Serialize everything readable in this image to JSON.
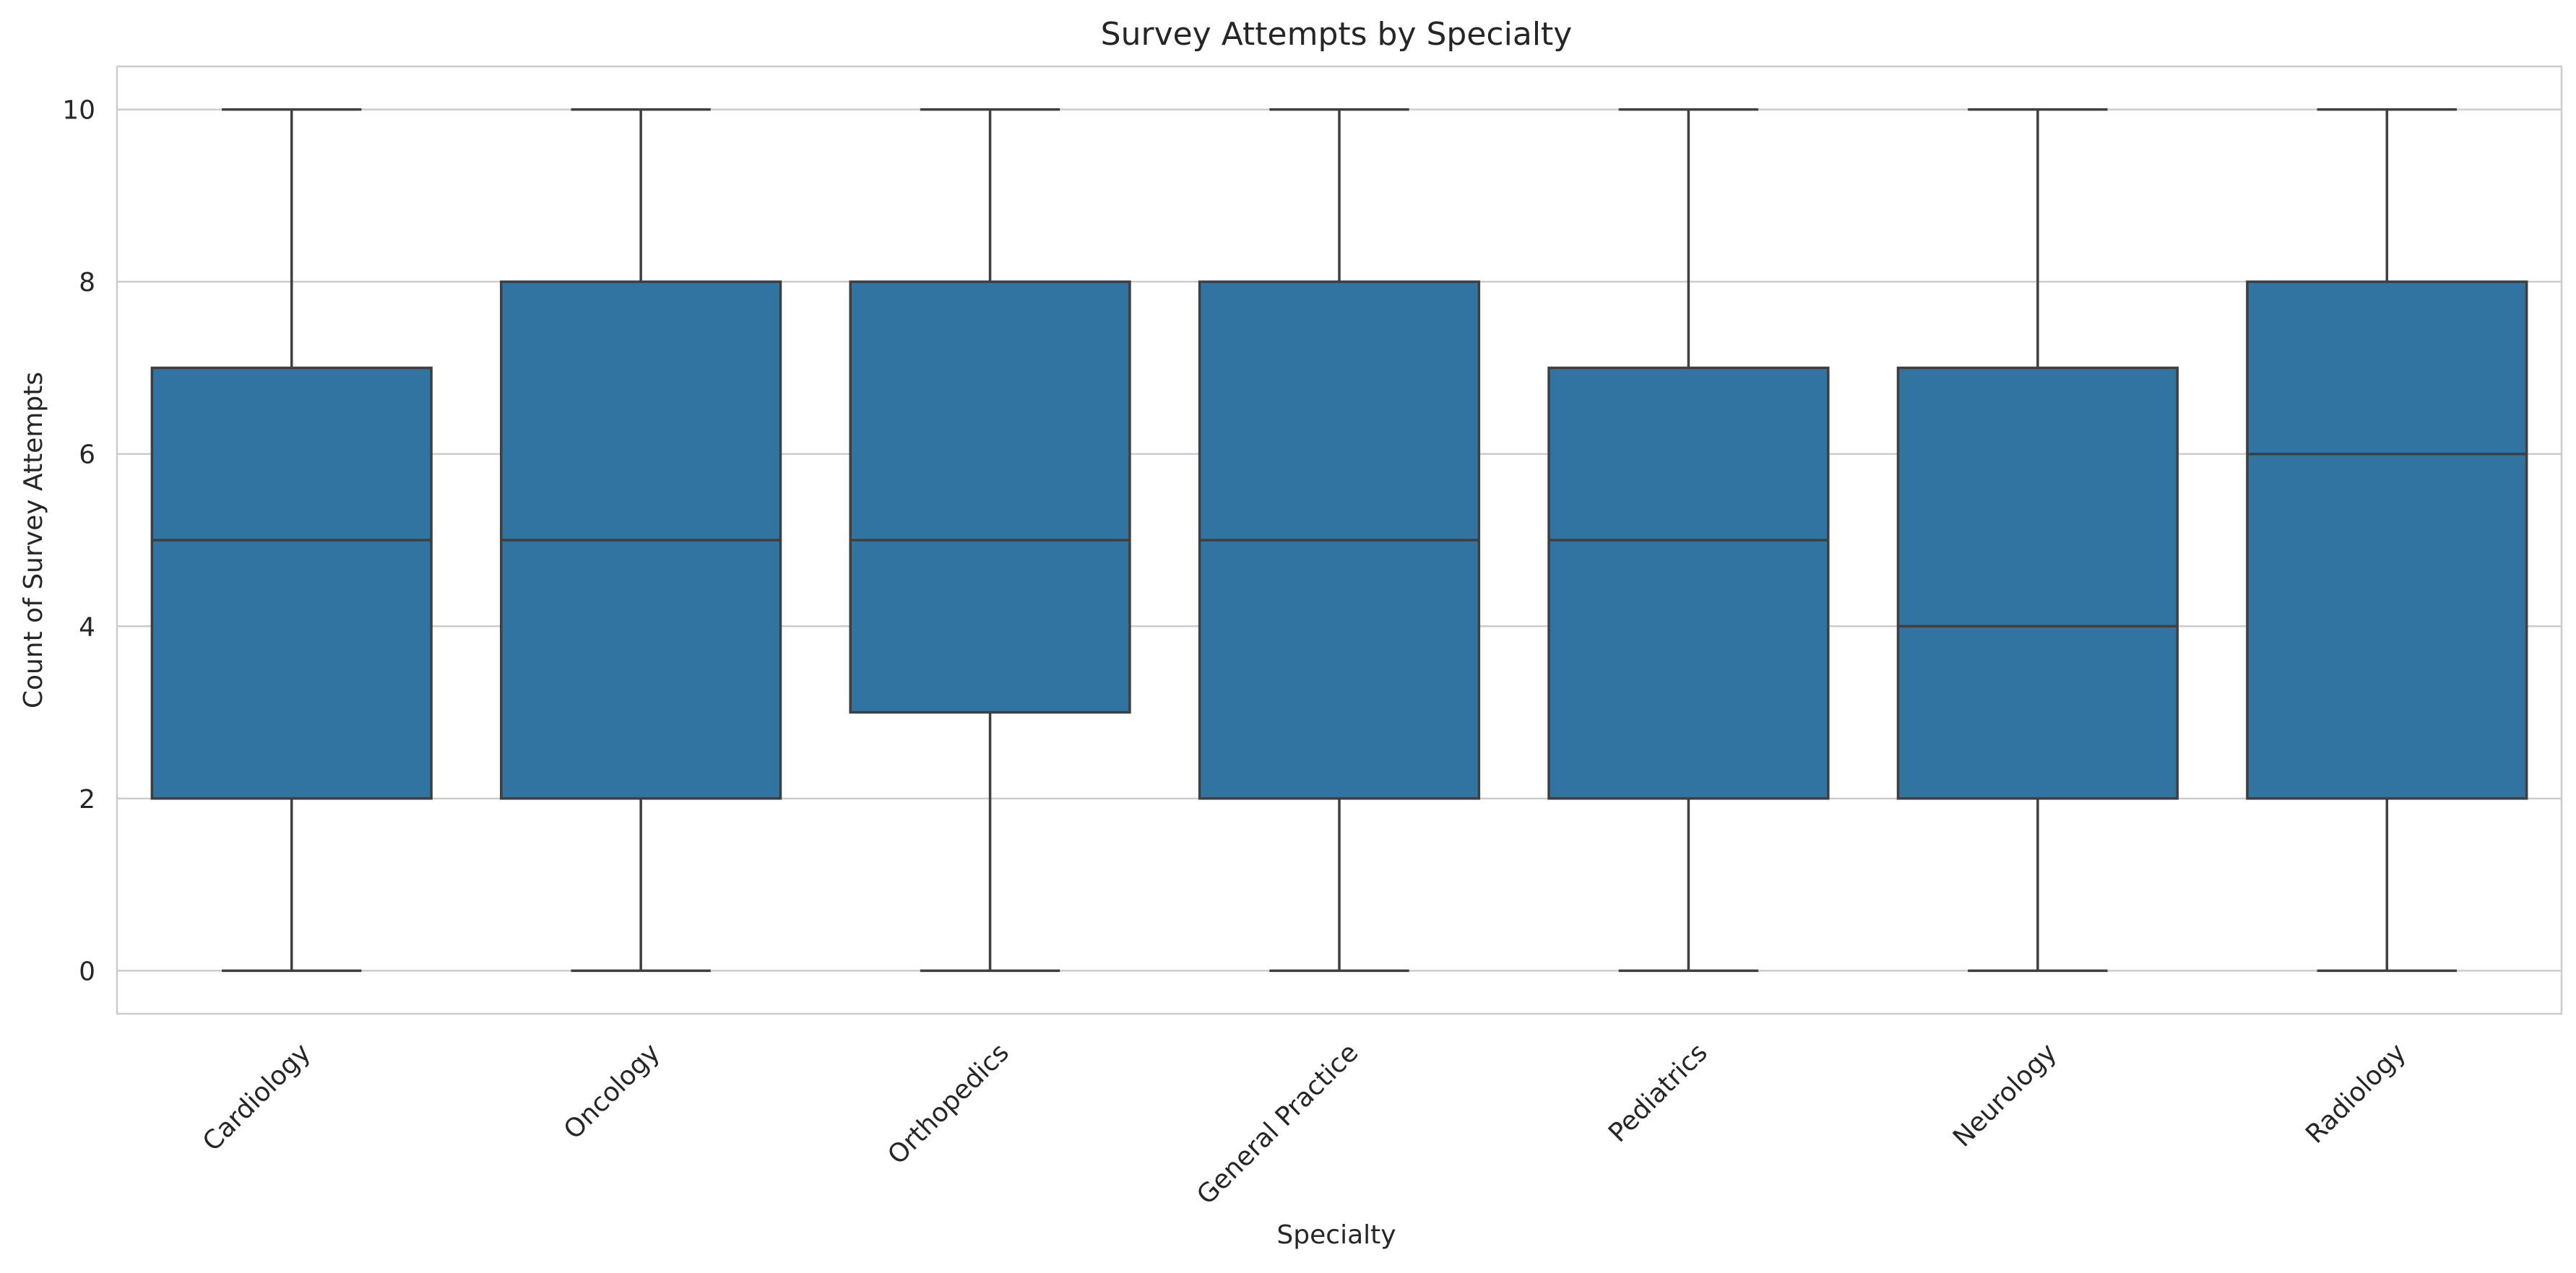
{
  "chart_data": {
    "type": "box",
    "title": "Survey Attempts by Specialty",
    "xlabel": "Specialty",
    "ylabel": "Count of Survey Attempts",
    "ylim": [
      -0.5,
      10.5
    ],
    "yticks": [
      0,
      2,
      4,
      6,
      8,
      10
    ],
    "grid": "y",
    "box_color": "#3274a1",
    "line_color": "#3f3f3f",
    "categories": [
      "Cardiology",
      "Oncology",
      "Orthopedics",
      "General Practice",
      "Pediatrics",
      "Neurology",
      "Radiology"
    ],
    "boxes": [
      {
        "category": "Cardiology",
        "whisker_low": 0,
        "q1": 2,
        "median": 5,
        "q3": 7,
        "whisker_high": 10
      },
      {
        "category": "Oncology",
        "whisker_low": 0,
        "q1": 2,
        "median": 5,
        "q3": 8,
        "whisker_high": 10
      },
      {
        "category": "Orthopedics",
        "whisker_low": 0,
        "q1": 3,
        "median": 5,
        "q3": 8,
        "whisker_high": 10
      },
      {
        "category": "General Practice",
        "whisker_low": 0,
        "q1": 2,
        "median": 5,
        "q3": 8,
        "whisker_high": 10
      },
      {
        "category": "Pediatrics",
        "whisker_low": 0,
        "q1": 2,
        "median": 5,
        "q3": 7,
        "whisker_high": 10
      },
      {
        "category": "Neurology",
        "whisker_low": 0,
        "q1": 2,
        "median": 4,
        "q3": 7,
        "whisker_high": 10
      },
      {
        "category": "Radiology",
        "whisker_low": 0,
        "q1": 2,
        "median": 6,
        "q3": 8,
        "whisker_high": 10
      }
    ]
  }
}
